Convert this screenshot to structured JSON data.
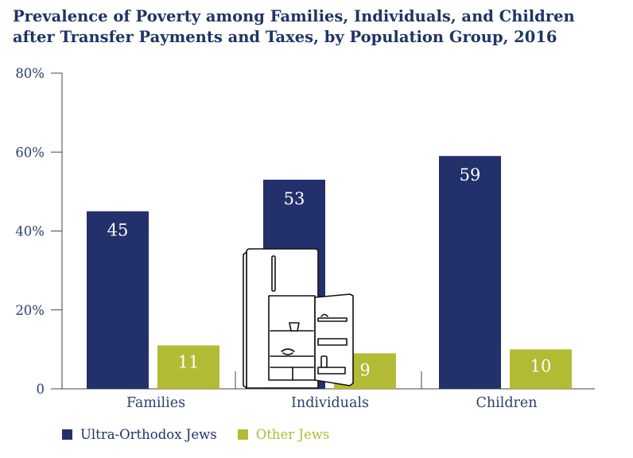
{
  "title_line1": "Prevalence of Poverty among Families, Individuals, and Children",
  "title_line2": "after Transfer Payments and Taxes, by Population Group, 2016",
  "colors": {
    "ultra": "#22306b",
    "other": "#b3bb35",
    "axis": "#444444",
    "tick_text": "#2b3f6b",
    "title": "#1f3466"
  },
  "chart_data": {
    "type": "bar",
    "categories": [
      "Families",
      "Individuals",
      "Children"
    ],
    "series": [
      {
        "name": "Ultra-Orthodox Jews",
        "values": [
          45,
          53,
          59
        ]
      },
      {
        "name": "Other Jews",
        "values": [
          11,
          9,
          10
        ]
      }
    ],
    "data_labels": [
      [
        "45",
        "53",
        "59"
      ],
      [
        "11",
        "9",
        "10"
      ]
    ],
    "ylim": [
      0,
      80
    ],
    "yticks": [
      0,
      20,
      40,
      60,
      80
    ],
    "yticklabels": [
      "0",
      "20%",
      "40%",
      "60%",
      "80%"
    ],
    "grid": false,
    "legend_position": "bottom-left"
  },
  "illustration": {
    "icon": "open-refrigerator-icon"
  }
}
